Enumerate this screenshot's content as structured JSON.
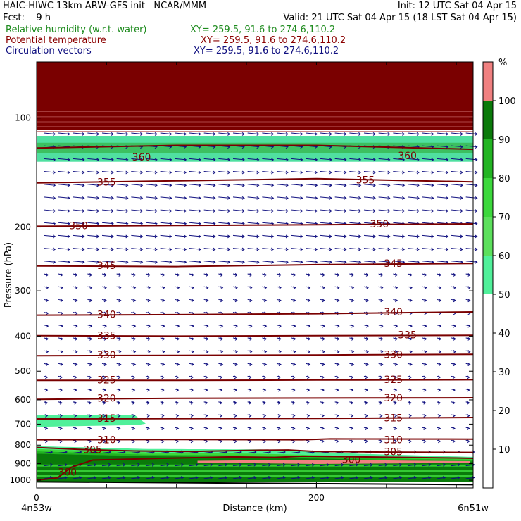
{
  "header": {
    "line1_left": "HAIC-HIWC 13km ARW-GFS init   NCAR/MMM",
    "line1_right": "Init: 12 UTC Sat 04 Apr 15",
    "line2_left": "Fcst:    9 h",
    "line2_right": "Valid: 21 UTC Sat 04 Apr 15 (18 LST Sat 04 Apr 15)",
    "fields": [
      {
        "label": "Relative humidity (w.r.t. water)",
        "xy": "XY= 259.5, 91.6 to 274.6,110.2",
        "color": "#1c8a1c"
      },
      {
        "label": "Potential temperature",
        "xy": "XY= 259.5, 91.6 to 274.6,110.2",
        "color": "#8b0000"
      },
      {
        "label": "Circulation vectors",
        "xy": "XY= 259.5, 91.6 to 274.6,110.2",
        "color": "#101080"
      }
    ]
  },
  "chart_data": {
    "type": "cross-section",
    "xlabel": "Distance (km)",
    "ylabel": "Pressure (hPa)",
    "x_range": [
      0,
      312
    ],
    "y_range": [
      1050,
      70
    ],
    "y_scale": "log",
    "x_ticks": [
      0,
      200
    ],
    "y_ticks": [
      100,
      200,
      300,
      400,
      500,
      600,
      700,
      800,
      900,
      1000
    ],
    "x_end_labels": {
      "left": "4n53w",
      "right": "6n51w"
    },
    "colorbar": {
      "unit": "%",
      "ticks": [
        10,
        20,
        30,
        40,
        50,
        60,
        70,
        80,
        90,
        100
      ],
      "bins": [
        {
          "from": 0,
          "to": 50,
          "color": "#ffffff"
        },
        {
          "from": 50,
          "to": 60,
          "color": "#50f09a"
        },
        {
          "from": 60,
          "to": 70,
          "color": "#5ce05c"
        },
        {
          "from": 70,
          "to": 80,
          "color": "#3cd83c"
        },
        {
          "from": 80,
          "to": 90,
          "color": "#22b422"
        },
        {
          "from": 90,
          "to": 100,
          "color": "#0a7a0a"
        },
        {
          "from": 100,
          "to": 110,
          "color": "#f08080"
        }
      ]
    },
    "theta_isentropes": [
      {
        "value": 300,
        "points": [
          [
            0,
            1000
          ],
          [
            15,
            985
          ],
          [
            25,
            920
          ],
          [
            40,
            880
          ],
          [
            90,
            870
          ],
          [
            140,
            862
          ],
          [
            170,
            865
          ],
          [
            190,
            858
          ],
          [
            230,
            862
          ],
          [
            300,
            868
          ],
          [
            312,
            870
          ]
        ],
        "labels": [
          [
            22,
            950
          ],
          [
            225,
            875
          ]
        ]
      },
      {
        "value": 305,
        "points": [
          [
            0,
            812
          ],
          [
            30,
            822
          ],
          [
            70,
            830
          ],
          [
            110,
            833
          ],
          [
            160,
            826
          ],
          [
            180,
            825
          ],
          [
            200,
            833
          ],
          [
            250,
            836
          ],
          [
            312,
            838
          ]
        ],
        "labels": [
          [
            40,
            822
          ],
          [
            255,
            834
          ]
        ]
      },
      {
        "value": 310,
        "points": [
          [
            0,
            773
          ],
          [
            100,
            772
          ],
          [
            190,
            773
          ],
          [
            210,
            769
          ],
          [
            312,
            770
          ]
        ],
        "labels": [
          [
            50,
            772
          ],
          [
            255,
            772
          ]
        ]
      },
      {
        "value": 315,
        "points": [
          [
            0,
            677
          ],
          [
            100,
            676
          ],
          [
            200,
            675
          ],
          [
            312,
            671
          ]
        ],
        "labels": [
          [
            50,
            674
          ],
          [
            255,
            673
          ]
        ]
      },
      {
        "value": 320,
        "points": [
          [
            0,
            598
          ],
          [
            100,
            594
          ],
          [
            200,
            593
          ],
          [
            312,
            592
          ]
        ],
        "labels": [
          [
            50,
            594
          ],
          [
            255,
            592
          ]
        ]
      },
      {
        "value": 325,
        "points": [
          [
            0,
            530
          ],
          [
            100,
            530
          ],
          [
            200,
            529
          ],
          [
            312,
            528
          ]
        ],
        "labels": [
          [
            50,
            528
          ],
          [
            255,
            527
          ]
        ]
      },
      {
        "value": 330,
        "points": [
          [
            0,
            453
          ],
          [
            100,
            452
          ],
          [
            200,
            451
          ],
          [
            312,
            449
          ]
        ],
        "labels": [
          [
            50,
            451
          ],
          [
            255,
            450
          ]
        ]
      },
      {
        "value": 335,
        "points": [
          [
            0,
            399
          ],
          [
            100,
            400
          ],
          [
            200,
            399
          ],
          [
            312,
            398
          ]
        ],
        "labels": [
          [
            50,
            398
          ],
          [
            265,
            397
          ]
        ]
      },
      {
        "value": 340,
        "points": [
          [
            0,
            350
          ],
          [
            100,
            349
          ],
          [
            200,
            347
          ],
          [
            312,
            343
          ]
        ],
        "labels": [
          [
            50,
            348
          ],
          [
            255,
            343
          ]
        ]
      },
      {
        "value": 345,
        "points": [
          [
            0,
            256
          ],
          [
            100,
            257
          ],
          [
            200,
            254
          ],
          [
            312,
            252
          ]
        ],
        "labels": [
          [
            50,
            255
          ],
          [
            255,
            252
          ]
        ]
      },
      {
        "value": 350,
        "points": [
          [
            0,
            199
          ],
          [
            100,
            198
          ],
          [
            200,
            197
          ],
          [
            312,
            196
          ]
        ],
        "labels": [
          [
            30,
            198
          ],
          [
            245,
            196
          ]
        ]
      },
      {
        "value": 355,
        "points": [
          [
            0,
            151
          ],
          [
            100,
            149
          ],
          [
            200,
            147
          ],
          [
            312,
            150
          ]
        ],
        "labels": [
          [
            50,
            150
          ],
          [
            235,
            148
          ]
        ]
      },
      {
        "value": 360,
        "points": [
          [
            0,
            121
          ],
          [
            100,
            119
          ],
          [
            200,
            119
          ],
          [
            312,
            122
          ]
        ],
        "labels": [
          [
            75,
            128
          ],
          [
            265,
            127
          ]
        ]
      }
    ],
    "rh_regions": [
      {
        "rh": 100,
        "desc": "top band",
        "p_range": [
          70,
          108
        ]
      },
      {
        "rh": 55,
        "desc": "mid-level moist patch",
        "x_range": [
          0,
          78
        ],
        "p_range": [
          660,
          712
        ]
      },
      {
        "rh": 100,
        "desc": "cloud layer sliver",
        "x_range": [
          115,
          310
        ],
        "p_range": [
          878,
          902
        ]
      }
    ]
  }
}
